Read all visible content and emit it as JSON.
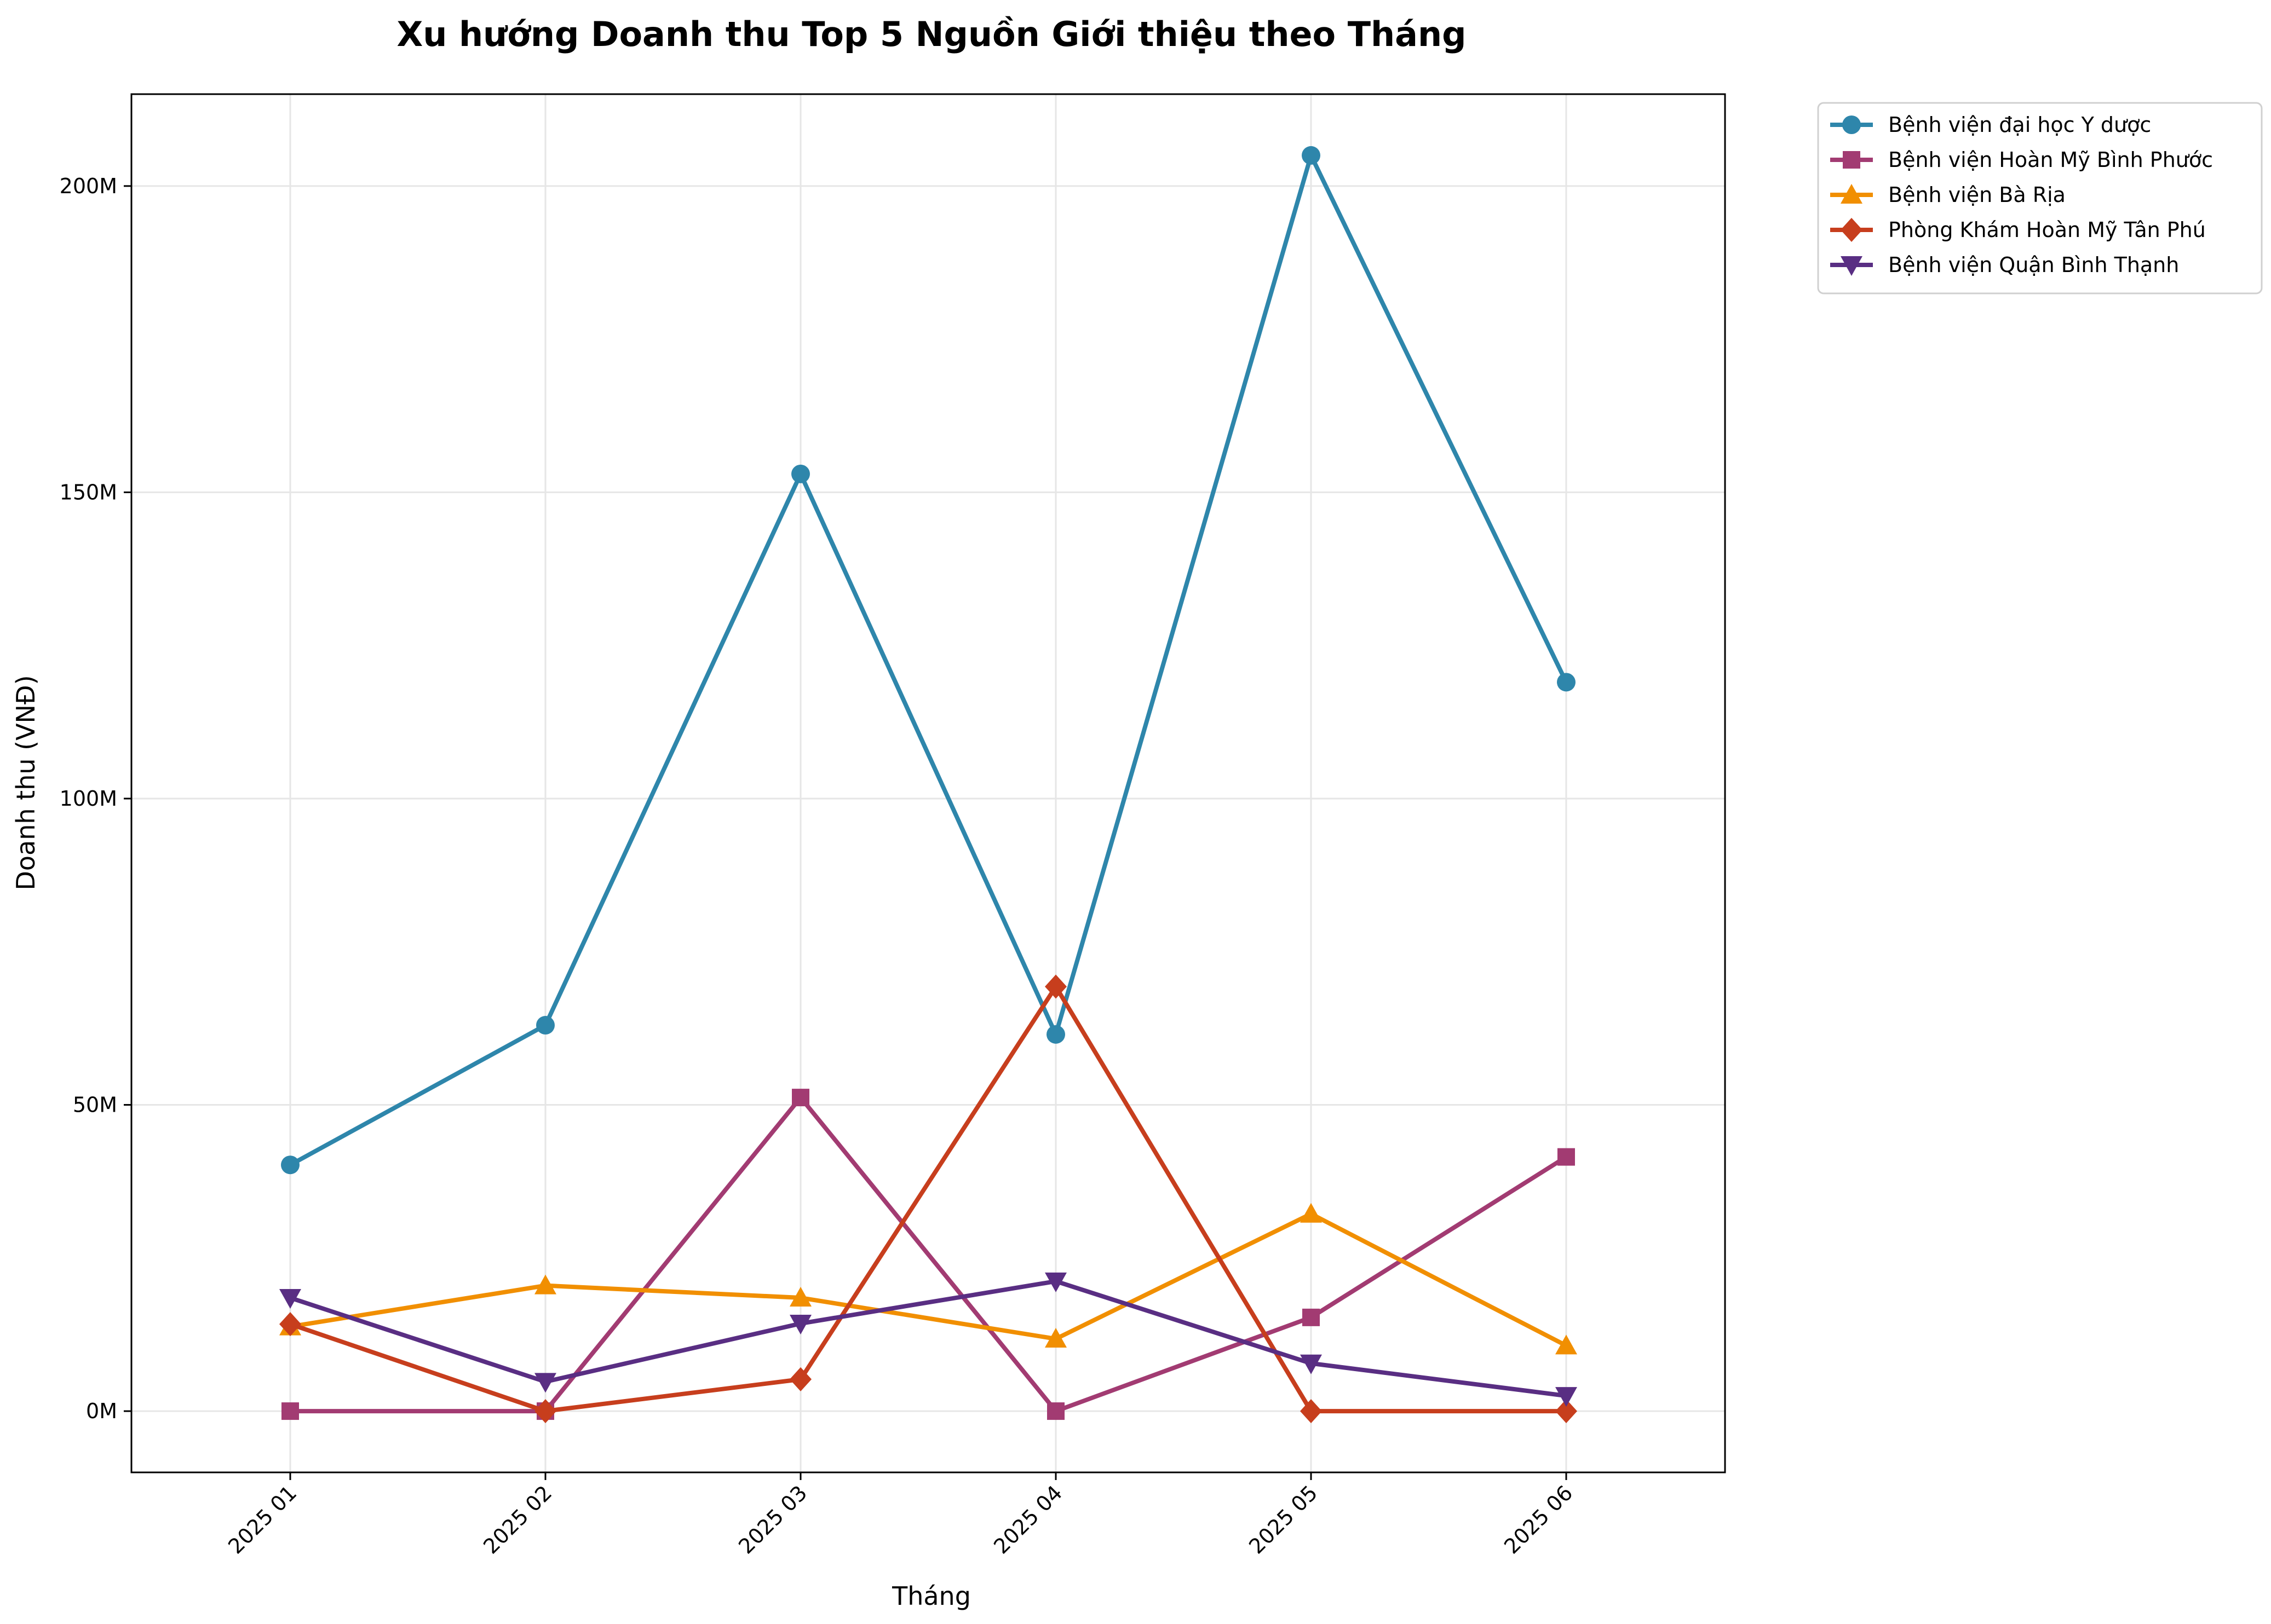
{
  "chart_data": {
    "type": "line",
    "title": "Xu hướng Doanh thu Top 5 Nguồn Giới thiệu theo Tháng",
    "xlabel": "Tháng",
    "ylabel": "Doanh thu (VNĐ)",
    "categories": [
      "2025 01",
      "2025 02",
      "2025 03",
      "2025 04",
      "2025 05",
      "2025 06"
    ],
    "ylim": [
      -10,
      215
    ],
    "yticks": [
      {
        "value": 0,
        "label": "0M"
      },
      {
        "value": 50,
        "label": "50M"
      },
      {
        "value": 100,
        "label": "100M"
      },
      {
        "value": 150,
        "label": "150M"
      },
      {
        "value": 200,
        "label": "200M"
      }
    ],
    "grid": true,
    "legend_position": "outside-top-right",
    "series": [
      {
        "name": "Bệnh viện đại học Y dược",
        "color": "#2e86ab",
        "marker": "circle",
        "values": [
          40.2,
          63,
          153,
          61.5,
          205,
          119
        ]
      },
      {
        "name": "Bệnh viện Hoàn Mỹ Bình Phước",
        "color": "#a23b72",
        "marker": "square",
        "values": [
          0,
          0,
          51.2,
          0,
          15.3,
          41.5
        ]
      },
      {
        "name": "Bệnh viện Bà Rịa",
        "color": "#f18f01",
        "marker": "triangle-up",
        "values": [
          13.8,
          20.5,
          18.5,
          11.8,
          32.2,
          10.7
        ]
      },
      {
        "name": "Phòng Khám Hoàn Mỹ Tân Phú",
        "color": "#c73e1d",
        "marker": "diamond",
        "values": [
          14.2,
          0,
          5.2,
          69.3,
          0,
          0
        ]
      },
      {
        "name": "Bệnh viện Quận Bình Thạnh",
        "color": "#592e83",
        "marker": "triangle-down",
        "values": [
          18.5,
          4.8,
          14.3,
          21.2,
          7.8,
          2.5
        ]
      }
    ]
  }
}
